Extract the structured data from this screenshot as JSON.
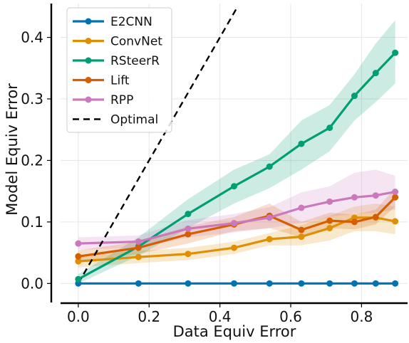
{
  "chart_data": {
    "type": "line",
    "title": "",
    "xlabel": "Data Equiv Error",
    "ylabel": "Model Equiv Error",
    "xlim": [
      -0.05,
      0.93
    ],
    "ylim": [
      -0.032,
      0.455
    ],
    "xticks": [
      "0.0",
      "0.2",
      "0.4",
      "0.6",
      "0.8"
    ],
    "xtick_values": [
      0.0,
      0.2,
      0.4,
      0.6,
      0.8
    ],
    "yticks": [
      "0.0",
      "0.1",
      "0.2",
      "0.3",
      "0.4"
    ],
    "ytick_values": [
      0.0,
      0.1,
      0.2,
      0.3,
      0.4
    ],
    "grid": true,
    "legend_position": "top-left",
    "x": [
      0.0,
      0.17,
      0.31,
      0.44,
      0.54,
      0.63,
      0.71,
      0.78,
      0.84,
      0.895
    ],
    "series": [
      {
        "name": "E2CNN",
        "color": "#0173b2",
        "values": [
          0.0,
          0.0,
          0.0,
          0.0,
          0.0,
          0.0,
          0.0,
          0.0,
          0.0,
          0.0
        ],
        "lower": [
          0.0,
          0.0,
          0.0,
          0.0,
          0.0,
          0.0,
          0.0,
          0.0,
          0.0,
          0.0
        ],
        "upper": [
          0.0,
          0.0,
          0.0,
          0.0,
          0.0,
          0.0,
          0.0,
          0.0,
          0.0,
          0.0
        ]
      },
      {
        "name": "ConvNet",
        "color": "#de8f05",
        "values": [
          0.036,
          0.043,
          0.048,
          0.058,
          0.072,
          0.076,
          0.09,
          0.107,
          0.107,
          0.101
        ],
        "lower": [
          0.026,
          0.033,
          0.038,
          0.048,
          0.062,
          0.062,
          0.07,
          0.085,
          0.085,
          0.08
        ],
        "upper": [
          0.046,
          0.053,
          0.058,
          0.068,
          0.082,
          0.095,
          0.11,
          0.125,
          0.13,
          0.125
        ]
      },
      {
        "name": "RSteerR",
        "color": "#029e73",
        "values": [
          0.007,
          0.06,
          0.113,
          0.158,
          0.19,
          0.227,
          0.253,
          0.305,
          0.342,
          0.375
        ],
        "lower": [
          0.0,
          0.045,
          0.09,
          0.13,
          0.155,
          0.185,
          0.215,
          0.265,
          0.295,
          0.325
        ],
        "upper": [
          0.015,
          0.075,
          0.137,
          0.185,
          0.21,
          0.265,
          0.29,
          0.34,
          0.39,
          0.428
        ]
      },
      {
        "name": "Lift",
        "color": "#d55e00",
        "values": [
          0.044,
          0.058,
          0.08,
          0.096,
          0.11,
          0.087,
          0.102,
          0.1,
          0.108,
          0.14
        ],
        "lower": [
          0.034,
          0.048,
          0.065,
          0.085,
          0.09,
          0.075,
          0.09,
          0.088,
          0.096,
          0.125
        ],
        "upper": [
          0.054,
          0.068,
          0.093,
          0.108,
          0.13,
          0.1,
          0.115,
          0.112,
          0.12,
          0.155
        ]
      },
      {
        "name": "RPP",
        "color": "#cc78bc",
        "values": [
          0.065,
          0.068,
          0.089,
          0.098,
          0.107,
          0.123,
          0.133,
          0.14,
          0.143,
          0.149
        ],
        "lower": [
          0.055,
          0.058,
          0.075,
          0.083,
          0.09,
          0.098,
          0.108,
          0.113,
          0.115,
          0.12
        ],
        "upper": [
          0.075,
          0.078,
          0.103,
          0.113,
          0.124,
          0.148,
          0.158,
          0.18,
          0.185,
          0.175
        ]
      },
      {
        "name": "Optimal",
        "color": "#000000",
        "style": "dashed",
        "line_x": [
          0.0,
          0.45
        ],
        "line_y": [
          0.0,
          0.45
        ]
      }
    ]
  }
}
